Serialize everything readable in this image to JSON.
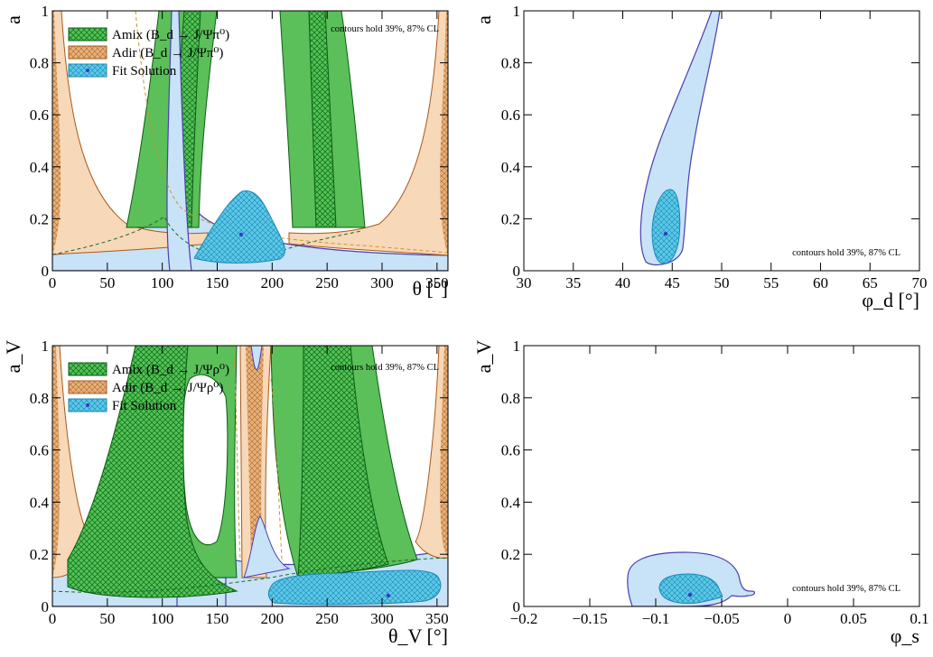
{
  "chart_data": [
    {
      "id": "tl",
      "type": "area",
      "ylabel": "a",
      "xlabel": "θ [°]",
      "xlim": [
        0,
        360
      ],
      "ylim": [
        0,
        1
      ],
      "xticks": [
        0,
        50,
        100,
        150,
        200,
        250,
        300,
        350
      ],
      "yticks": [
        0,
        0.2,
        0.4,
        0.6,
        0.8,
        1
      ],
      "legend": {
        "position": "top-left",
        "entries": [
          {
            "label": "Amix (B_d → J/Ψπ⁰)",
            "color": "#5bbf5a",
            "hatch": true
          },
          {
            "label": "Adir (B_d → J/Ψπ⁰)",
            "color": "#f7d8b8",
            "hatch": true
          },
          {
            "label": "Fit Solution",
            "color": "#bcdcf5",
            "hatch": true,
            "marker": true
          }
        ]
      },
      "annotation": "contours hold 39%, 87% CL",
      "series": [
        {
          "name": "Amix (B_d → J/Ψπ⁰)",
          "outer_regions": [
            [
              80,
              140
            ],
            [
              195,
              290
            ]
          ],
          "inner_regions": [
            [
              100,
              120
            ],
            [
              225,
              255
            ]
          ]
        },
        {
          "name": "Adir (B_d → J/Ψπ⁰)",
          "min_a": 0.12
        },
        {
          "name": "Fit Solution",
          "best_fit": [
            173,
            0.14
          ],
          "inner_region_x": [
            125,
            200
          ],
          "inner_region_a": [
            0.03,
            0.3
          ]
        }
      ]
    },
    {
      "id": "tr",
      "type": "area",
      "ylabel": "a",
      "xlabel": "φ_d [°]",
      "xlim": [
        30,
        70
      ],
      "ylim": [
        0,
        1
      ],
      "xticks": [
        30,
        35,
        40,
        45,
        50,
        55,
        60,
        65,
        70
      ],
      "yticks": [
        0,
        0.2,
        0.4,
        0.6,
        0.8,
        1
      ],
      "annotation": "contours hold 39%, 87% CL",
      "series": [
        {
          "name": "Fit Solution",
          "best_fit": [
            44.5,
            0.14
          ],
          "outer_x": [
            41.5,
            49.5
          ],
          "inner_x": [
            43.5,
            45.5
          ]
        }
      ]
    },
    {
      "id": "bl",
      "type": "area",
      "ylabel": "a_V",
      "xlabel": "θ_V [°]",
      "xlim": [
        0,
        360
      ],
      "ylim": [
        0,
        1
      ],
      "xticks": [
        0,
        50,
        100,
        150,
        200,
        250,
        300,
        350
      ],
      "yticks": [
        0,
        0.2,
        0.4,
        0.6,
        0.8,
        1
      ],
      "legend": {
        "position": "top-left",
        "entries": [
          {
            "label": "Amix (B_d → J/Ψρ⁰)",
            "color": "#5bbf5a",
            "hatch": true
          },
          {
            "label": "Adir (B_d → J/Ψρ⁰)",
            "color": "#f7d8b8",
            "hatch": true
          },
          {
            "label": "Fit Solution",
            "color": "#bcdcf5",
            "hatch": true,
            "marker": true
          }
        ]
      },
      "annotation": "contours hold 39%, 87% CL",
      "series": [
        {
          "name": "Amix (B_d → J/Ψρ⁰)",
          "outer_regions": [
            [
              20,
              175
            ],
            [
              195,
              350
            ]
          ],
          "inner_regions": [
            [
              35,
              150
            ],
            [
              230,
              330
            ]
          ]
        },
        {
          "name": "Adir (B_d → J/Ψρ⁰)",
          "min_a": 0.2
        },
        {
          "name": "Fit Solution",
          "best_fit": [
            305,
            0.04
          ],
          "inner_region_x": [
            195,
            355
          ],
          "inner_region_a": [
            0.0,
            0.1
          ]
        }
      ]
    },
    {
      "id": "br",
      "type": "area",
      "ylabel": "a_V",
      "xlabel": "φ_s",
      "xlim": [
        -0.2,
        0.1
      ],
      "ylim": [
        0,
        1
      ],
      "xticks": [
        -0.2,
        -0.15,
        -0.1,
        -0.05,
        0,
        0.05,
        0.1
      ],
      "xticklabels": [
        "−0.2",
        "−0.15",
        "−0.1",
        "−0.05",
        "0",
        "0.05",
        "0.1"
      ],
      "yticks": [
        0,
        0.2,
        0.4,
        0.6,
        0.8,
        1
      ],
      "annotation": "contours hold 39%, 87% CL",
      "series": [
        {
          "name": "Fit Solution",
          "best_fit": [
            -0.075,
            0.045
          ],
          "outer_x": [
            -0.12,
            -0.02
          ],
          "inner_x": [
            -0.1,
            -0.05
          ]
        }
      ]
    }
  ]
}
